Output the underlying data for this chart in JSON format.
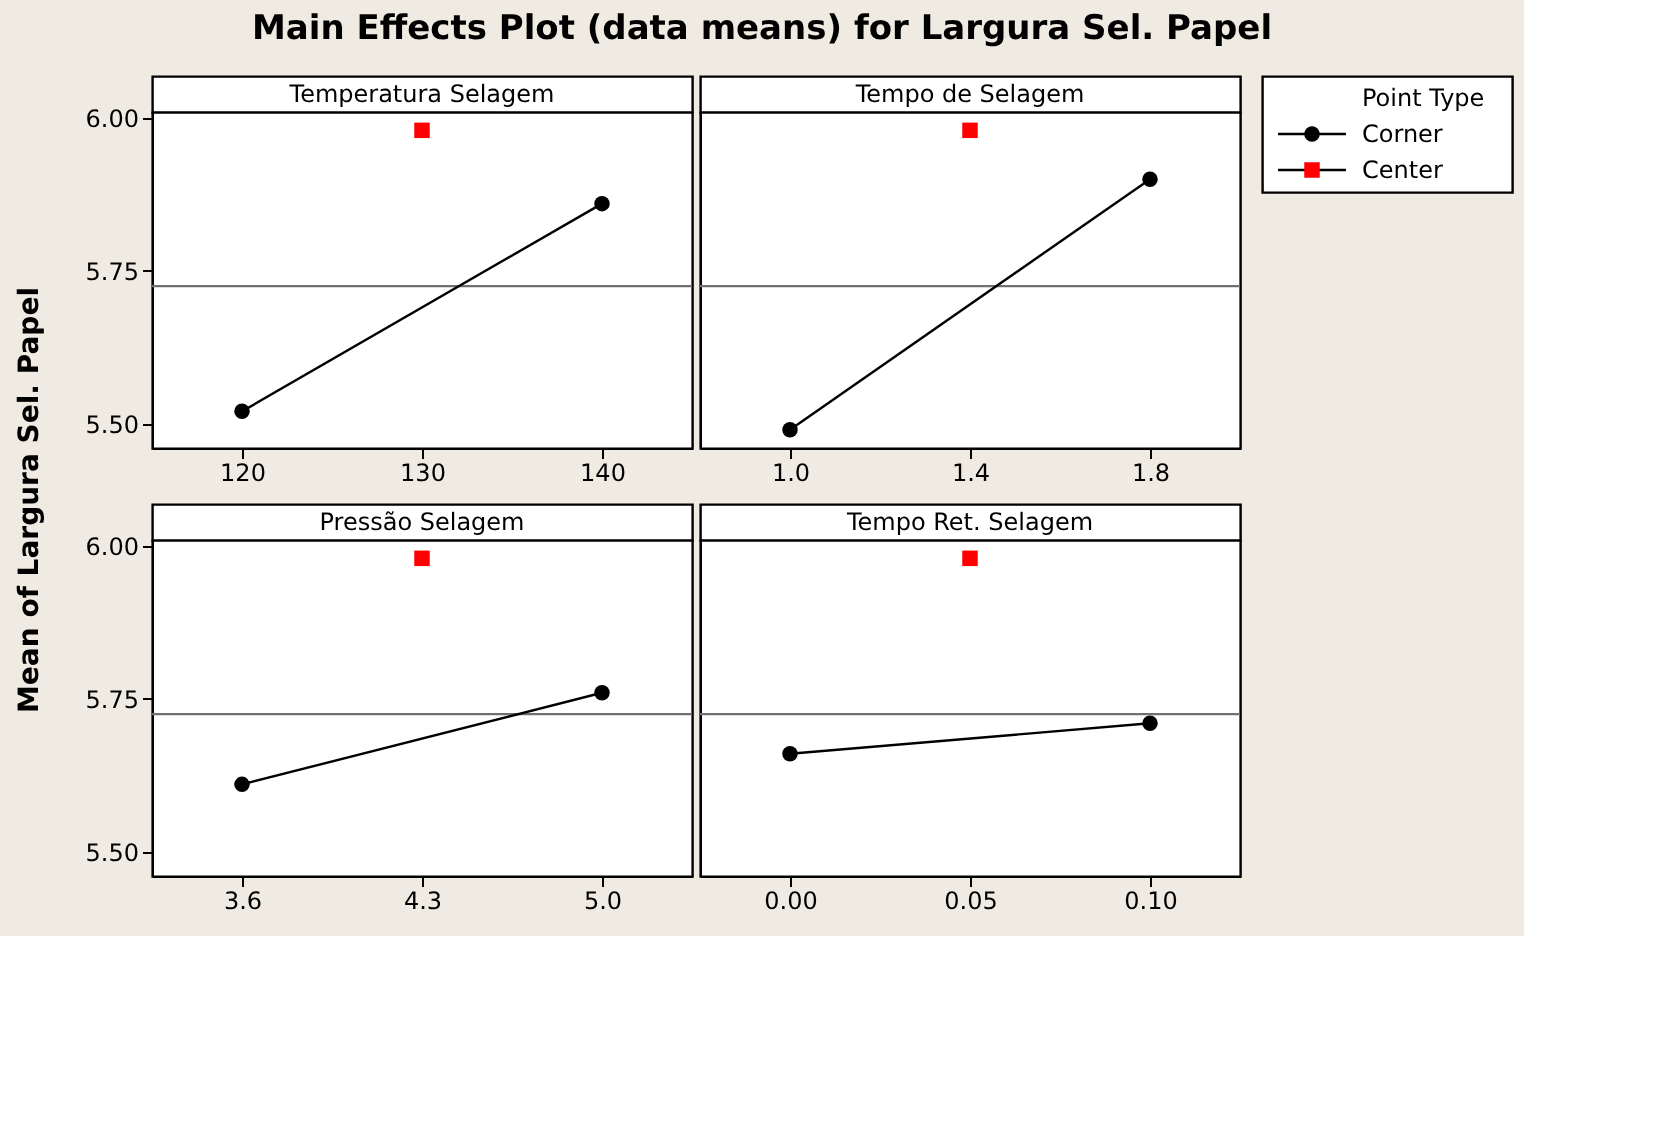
{
  "chart_data": [
    {
      "type": "line",
      "title": "Main Effects Plot (data means) for Largura Sel. Papel",
      "subtitle": "Temperatura Selagem",
      "ylabel": "Mean of Largura Sel. Papel",
      "legend_title": "Point Type",
      "legend": "top right",
      "grid": false,
      "series": [
        {
          "name": "Corner",
          "type": "line",
          "color": "#000000",
          "marker": "circle",
          "line_style": "solid",
          "x": [
            120,
            140
          ],
          "values": [
            5.52,
            5.86
          ]
        },
        {
          "name": "Center",
          "type": "scatter",
          "color": "#ff0000",
          "marker": "square",
          "x": [
            130
          ],
          "values": [
            5.98
          ]
        }
      ],
      "xlim": [
        115,
        145
      ],
      "xticks": [
        120,
        130,
        140
      ],
      "ylim": [
        5.46,
        6.01
      ],
      "yticks": [
        {
          "value": 5.5,
          "label": "5.50"
        },
        {
          "value": 5.75,
          "label": "5.75"
        },
        {
          "value": 6.0,
          "label": "6.00"
        }
      ],
      "ref_lines": [
        {
          "axis": "y",
          "value": 5.725,
          "color": "#707070"
        }
      ]
    },
    {
      "type": "line",
      "subtitle": "Tempo de Selagem",
      "grid": false,
      "tick_labels": "x",
      "series": [
        {
          "name": "Corner",
          "type": "line",
          "color": "#000000",
          "marker": "circle",
          "line_style": "solid",
          "x": [
            1.0,
            1.8
          ],
          "values": [
            5.49,
            5.9
          ]
        },
        {
          "name": "Center",
          "type": "scatter",
          "color": "#ff0000",
          "marker": "square",
          "x": [
            1.4
          ],
          "values": [
            5.98
          ]
        }
      ],
      "xlim": [
        0.8,
        2.0
      ],
      "xticks": [
        {
          "value": 1.0,
          "label": "1.0"
        },
        {
          "value": 1.4,
          "label": "1.4"
        },
        {
          "value": 1.8,
          "label": "1.8"
        }
      ],
      "ylim": [
        5.46,
        6.01
      ],
      "yticks": [
        {
          "value": 5.5,
          "label": "5.50"
        },
        {
          "value": 5.75,
          "label": "5.75"
        },
        {
          "value": 6.0,
          "label": "6.00"
        }
      ],
      "ref_lines": [
        {
          "axis": "y",
          "value": 5.725,
          "color": "#707070"
        }
      ]
    },
    {
      "type": "line",
      "subtitle": "Pressão Selagem",
      "grid": false,
      "series": [
        {
          "name": "Corner",
          "type": "line",
          "color": "#000000",
          "marker": "circle",
          "line_style": "solid",
          "x": [
            3.6,
            5.0
          ],
          "values": [
            5.61,
            5.76
          ]
        },
        {
          "name": "Center",
          "type": "scatter",
          "color": "#ff0000",
          "marker": "square",
          "x": [
            4.3
          ],
          "values": [
            5.98
          ]
        }
      ],
      "xlim": [
        3.25,
        5.35
      ],
      "xticks": [
        3.6,
        4.3,
        {
          "value": 5.0,
          "label": "5.0"
        }
      ],
      "ylim": [
        5.46,
        6.01
      ],
      "yticks": [
        {
          "value": 5.5,
          "label": "5.50"
        },
        {
          "value": 5.75,
          "label": "5.75"
        },
        {
          "value": 6.0,
          "label": "6.00"
        }
      ],
      "ref_lines": [
        {
          "axis": "y",
          "value": 5.725,
          "color": "#707070"
        }
      ]
    },
    {
      "type": "line",
      "subtitle": "Tempo Ret. Selagem",
      "grid": false,
      "tick_labels": "x",
      "series": [
        {
          "name": "Corner",
          "type": "line",
          "color": "#000000",
          "marker": "circle",
          "line_style": "solid",
          "x": [
            0.0,
            0.1
          ],
          "values": [
            5.66,
            5.71
          ]
        },
        {
          "name": "Center",
          "type": "scatter",
          "color": "#ff0000",
          "marker": "square",
          "x": [
            0.05
          ],
          "values": [
            5.98
          ]
        }
      ],
      "xlim": [
        -0.025,
        0.125
      ],
      "xticks": [
        {
          "value": 0.0,
          "label": "0.00"
        },
        {
          "value": 0.05,
          "label": "0.05"
        },
        {
          "value": 0.1,
          "label": "0.10"
        }
      ],
      "ylim": [
        5.46,
        6.01
      ],
      "yticks": [
        {
          "value": 5.5,
          "label": "5.50"
        },
        {
          "value": 5.75,
          "label": "5.75"
        },
        {
          "value": 6.0,
          "label": "6.00"
        }
      ],
      "ref_lines": [
        {
          "axis": "y",
          "value": 5.725,
          "color": "#707070"
        }
      ]
    }
  ]
}
